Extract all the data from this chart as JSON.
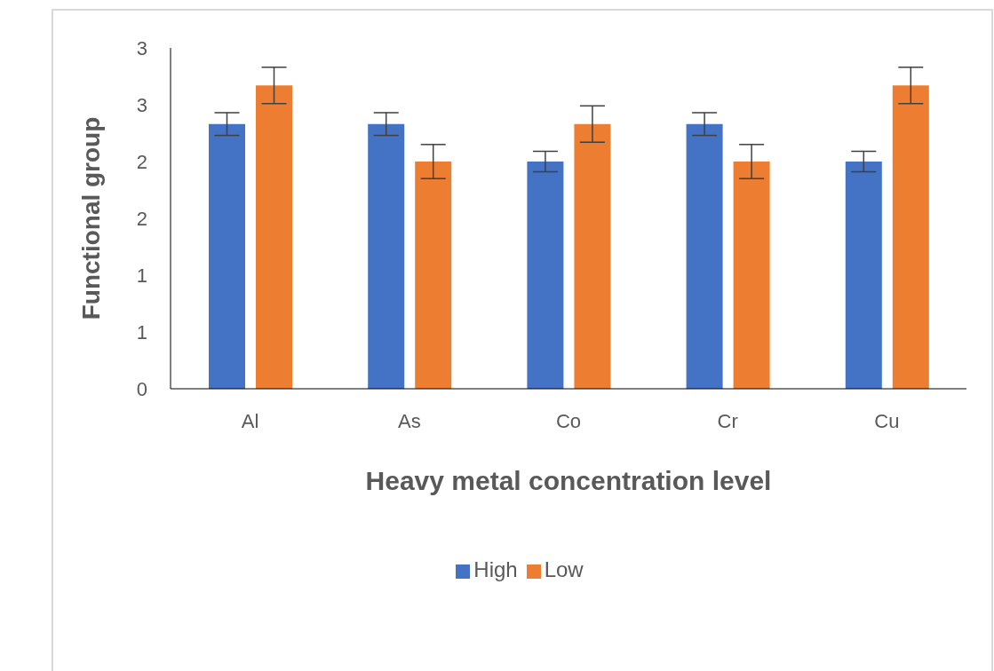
{
  "chart_data": {
    "type": "bar",
    "xlabel": "Heavy metal concentration  level",
    "ylabel": "Functional  group",
    "categories": [
      "Al",
      "As",
      "Co",
      "Cr",
      "Cu"
    ],
    "series": [
      {
        "name": "High",
        "color": "#4472c4",
        "values": [
          2.33,
          2.33,
          2.0,
          2.33,
          2.0
        ],
        "errors": [
          0.1,
          0.1,
          0.09,
          0.1,
          0.09
        ]
      },
      {
        "name": "Low",
        "color": "#ed7d31",
        "values": [
          2.67,
          2.0,
          2.33,
          2.0,
          2.67
        ],
        "errors": [
          0.16,
          0.15,
          0.16,
          0.15,
          0.16
        ]
      }
    ],
    "ylim": [
      0,
      3
    ],
    "yticks": [
      0,
      {
        "value": 0.5,
        "label": "1"
      },
      1,
      {
        "value": 1.5,
        "label": "2"
      },
      2,
      {
        "value": 2.5,
        "label": "3"
      },
      3
    ],
    "grid": false,
    "legend": "bottom"
  }
}
